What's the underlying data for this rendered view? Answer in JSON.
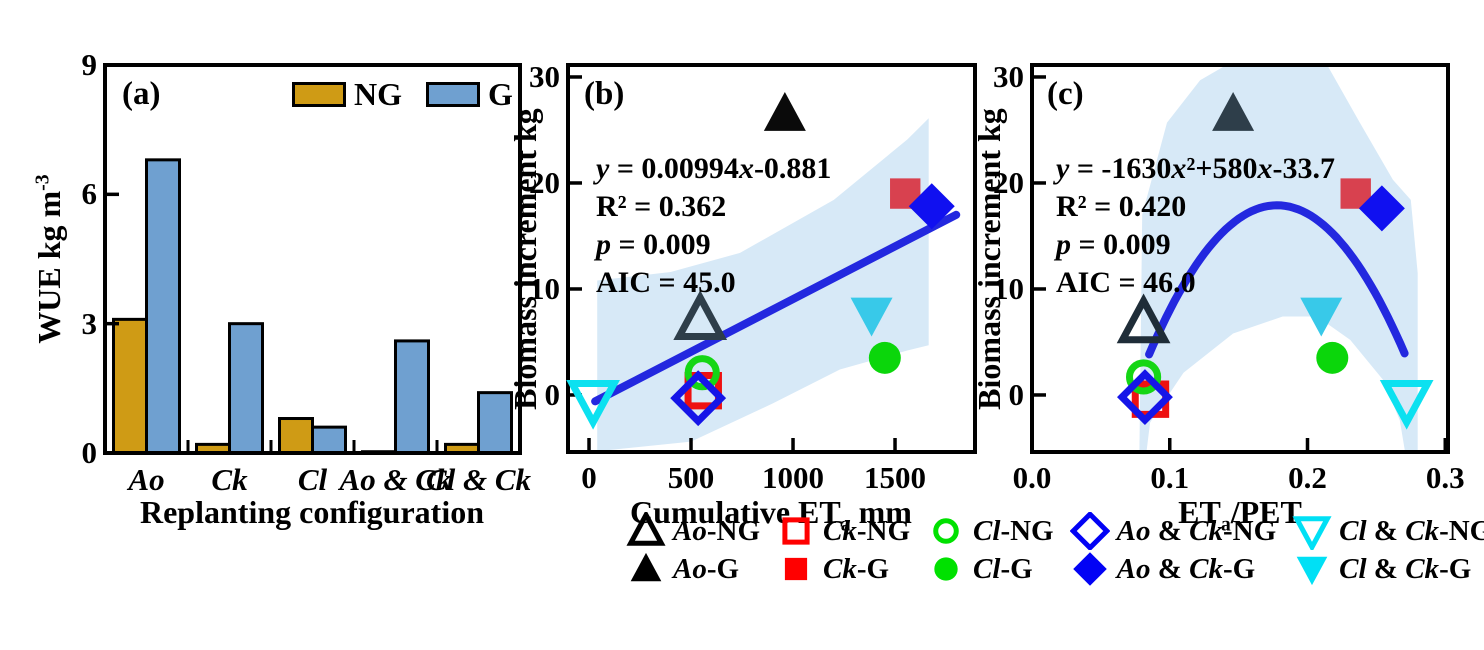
{
  "figure": {
    "background": "#FFFFFF",
    "colors": {
      "band": "#D7E9F7",
      "fit_line": "#2328DF",
      "axis": "#000000"
    },
    "panels": {
      "a": {
        "tag": "(a)",
        "ylabel": [
          {
            "t": "WUE kg m"
          },
          {
            "t": "-3",
            "sup": true
          }
        ],
        "xlabel": [
          {
            "t": "Replanting configuration"
          }
        ],
        "legend": [
          {
            "label": "NG",
            "color": "#CF9B15"
          },
          {
            "label": "G",
            "color": "#6FA0D0"
          }
        ],
        "chart_data": {
          "type": "bar",
          "categories": [
            "Ao",
            "Ck",
            "Cl",
            "Ao & Ck",
            "Cl & Ck"
          ],
          "series": [
            {
              "name": "NG",
              "color": "#CF9B15",
              "values": [
                3.1,
                0.2,
                0.8,
                0.03,
                0.2
              ]
            },
            {
              "name": "G",
              "color": "#6FA0D0",
              "values": [
                6.8,
                3.0,
                0.6,
                2.6,
                1.4
              ]
            }
          ],
          "ylim": [
            0,
            9
          ],
          "yticks": {
            "values": [
              0,
              3,
              6,
              9
            ],
            "labels": [
              "0",
              "3",
              "6",
              "9"
            ]
          }
        }
      },
      "b": {
        "tag": "(b)",
        "ylabel": "Biomass increment kg",
        "xlabel": [
          {
            "t": "Cumulative ET"
          },
          {
            "t": "a",
            "sub": true
          },
          {
            "t": " mm"
          }
        ],
        "stats": [
          [
            {
              "t": "y",
              "i": true
            },
            {
              "t": " = 0.00994"
            },
            {
              "t": "x",
              "i": true
            },
            {
              "t": "-0.881"
            }
          ],
          [
            {
              "t": "R² = 0.362"
            }
          ],
          [
            {
              "t": "p",
              "i": true
            },
            {
              "t": " = 0.009"
            }
          ],
          [
            {
              "t": "AIC = 45.0"
            }
          ]
        ],
        "chart_data": {
          "type": "scatter",
          "xlim": [
            -103,
            1892
          ],
          "ylim": [
            -5.38,
            31.13
          ],
          "xticks": {
            "values": [
              0,
              500,
              1000,
              1500
            ],
            "labels": [
              "0",
              "500",
              "1000",
              "1500"
            ]
          },
          "yticks": {
            "values": [
              0,
              10,
              20,
              30
            ],
            "labels": [
              "0",
              "10",
              "20",
              "30"
            ]
          },
          "fit_line": {
            "x1": 30,
            "y1": -0.6,
            "x2": 1800,
            "y2": 17.0,
            "color": "#2328DF"
          },
          "band": [
            [
              40,
              10.8
            ],
            [
              400,
              11.6
            ],
            [
              740,
              13.4
            ],
            [
              1200,
              18.4
            ],
            [
              1560,
              24.1
            ],
            [
              1665,
              26.1
            ],
            [
              1665,
              4.7
            ],
            [
              1560,
              4.2
            ],
            [
              1230,
              2.4
            ],
            [
              900,
              -0.8
            ],
            [
              500,
              -4.4
            ],
            [
              40,
              -5.3
            ]
          ],
          "points": [
            {
              "name": "Ck-NG",
              "marker": "square",
              "filled": false,
              "color": "#EE1111",
              "x": 560,
              "y": 0.4
            },
            {
              "name": "Cl-NG",
              "marker": "circle",
              "filled": false,
              "color": "#15D615",
              "x": 555,
              "y": 2.1
            },
            {
              "name": "Ao & Ck-NG",
              "marker": "diamond",
              "filled": false,
              "color": "#1515E8",
              "x": 535,
              "y": -0.3
            },
            {
              "name": "Cl & Ck-NG",
              "marker": "triangle-down",
              "filled": false,
              "color": "#0CE1F0",
              "x": 20,
              "y": -0.5
            },
            {
              "name": "Ao-NG",
              "marker": "triangle",
              "filled": false,
              "color": "#2E3E4A",
              "x": 545,
              "y": 7.1
            },
            {
              "name": "Ao-G",
              "marker": "triangle",
              "filled": true,
              "color": "#0A0A0A",
              "x": 960,
              "y": 26.5
            },
            {
              "name": "Ck-G",
              "marker": "square",
              "filled": true,
              "color": "#D8414F",
              "x": 1550,
              "y": 19.0
            },
            {
              "name": "Ao & Ck-G",
              "marker": "diamond",
              "filled": true,
              "color": "#1010F0",
              "x": 1680,
              "y": 17.8
            },
            {
              "name": "Cl-G",
              "marker": "circle",
              "filled": true,
              "color": "#0BD60B",
              "x": 1450,
              "y": 3.5
            },
            {
              "name": "Cl & Ck-G",
              "marker": "triangle-down",
              "filled": true,
              "color": "#38C9E9",
              "x": 1385,
              "y": 7.6
            }
          ]
        }
      },
      "c": {
        "tag": "(c)",
        "ylabel": "Biomass increment kg",
        "xlabel": [
          {
            "t": "ET"
          },
          {
            "t": "a",
            "sub": true
          },
          {
            "t": "/PET"
          }
        ],
        "stats": [
          [
            {
              "t": "y",
              "i": true
            },
            {
              "t": " = -1630"
            },
            {
              "t": "x",
              "i": true
            },
            {
              "t": "²+580"
            },
            {
              "t": "x",
              "i": true
            },
            {
              "t": "-33.7"
            }
          ],
          [
            {
              "t": "R² = 0.420"
            }
          ],
          [
            {
              "t": "p",
              "i": true
            },
            {
              "t": " = 0.009"
            }
          ],
          [
            {
              "t": "AIC = 46.0"
            }
          ]
        ],
        "chart_data": {
          "type": "scatter",
          "xlim": [
            0,
            0.302
          ],
          "ylim": [
            -5.38,
            31.13
          ],
          "xticks": {
            "values": [
              0,
              0.1,
              0.2,
              0.3
            ],
            "labels": [
              "0.0",
              "0.1",
              "0.2",
              "0.3"
            ]
          },
          "yticks": {
            "values": [
              0,
              10,
              20,
              30
            ],
            "labels": [
              "0",
              "10",
              "20",
              "30"
            ]
          },
          "fit_curve": {
            "coeffs": [
              -1630,
              580,
              -33.7
            ],
            "x_start": 0.085,
            "x_end": 0.2705,
            "color": "#2328DF"
          },
          "band": [
            [
              0.078,
              -5.5
            ],
            [
              0.08,
              17
            ],
            [
              0.098,
              25.7
            ],
            [
              0.122,
              29.7
            ],
            [
              0.142,
              31.2
            ],
            [
              0.214,
              31.2
            ],
            [
              0.238,
              25.7
            ],
            [
              0.262,
              20.3
            ],
            [
              0.275,
              18.4
            ],
            [
              0.28,
              11.5
            ],
            [
              0.28,
              -5.5
            ],
            [
              0.271,
              -5.5
            ],
            [
              0.267,
              -2.4
            ],
            [
              0.255,
              1.4
            ],
            [
              0.231,
              5.2
            ],
            [
              0.207,
              7.4
            ],
            [
              0.182,
              7.4
            ],
            [
              0.146,
              5.8
            ],
            [
              0.11,
              2.1
            ],
            [
              0.0857,
              -2.6
            ],
            [
              0.083,
              -5.5
            ]
          ],
          "points": [
            {
              "name": "Ck-NG",
              "marker": "square",
              "filled": false,
              "color": "#EE1111",
              "x": 0.086,
              "y": -0.4
            },
            {
              "name": "Cl-NG",
              "marker": "circle",
              "filled": false,
              "color": "#15D615",
              "x": 0.081,
              "y": 1.7
            },
            {
              "name": "Ao & Ck-NG",
              "marker": "diamond",
              "filled": false,
              "color": "#1515E8",
              "x": 0.082,
              "y": -0.2
            },
            {
              "name": "Cl & Ck-NG",
              "marker": "triangle-down",
              "filled": false,
              "color": "#0CE1F0",
              "x": 0.272,
              "y": -0.5
            },
            {
              "name": "Ao-NG",
              "marker": "triangle",
              "filled": false,
              "color": "#1F2D38",
              "x": 0.081,
              "y": 6.8
            },
            {
              "name": "Ao-G",
              "marker": "triangle",
              "filled": true,
              "color": "#2E3E4A",
              "x": 0.146,
              "y": 26.5
            },
            {
              "name": "Ck-G",
              "marker": "square",
              "filled": true,
              "color": "#D8414F",
              "x": 0.235,
              "y": 19.0
            },
            {
              "name": "Ao & Ck-G",
              "marker": "diamond",
              "filled": true,
              "color": "#1010F0",
              "x": 0.254,
              "y": 17.6
            },
            {
              "name": "Cl-G",
              "marker": "circle",
              "filled": true,
              "color": "#0BD60B",
              "x": 0.218,
              "y": 3.5
            },
            {
              "name": "Cl & Ck-G",
              "marker": "triangle-down",
              "filled": true,
              "color": "#38C9E9",
              "x": 0.21,
              "y": 7.6
            }
          ]
        }
      }
    },
    "legend": {
      "rows": [
        [
          {
            "marker": "triangle",
            "filled": false,
            "color": "#000000",
            "label": [
              {
                "t": "Ao",
                "i": true
              },
              {
                "t": "-NG"
              }
            ]
          },
          {
            "marker": "square",
            "filled": false,
            "color": "#FF0000",
            "label": [
              {
                "t": "Ck",
                "i": true
              },
              {
                "t": "-NG"
              }
            ]
          },
          {
            "marker": "circle",
            "filled": false,
            "color": "#00E100",
            "label": [
              {
                "t": "Cl",
                "i": true
              },
              {
                "t": "-NG"
              }
            ]
          },
          {
            "marker": "diamond",
            "filled": false,
            "color": "#0202F5",
            "label": [
              {
                "t": "Ao",
                "i": true
              },
              {
                "t": " & "
              },
              {
                "t": "Ck",
                "i": true
              },
              {
                "t": "-NG"
              }
            ]
          },
          {
            "marker": "triangle-down",
            "filled": false,
            "color": "#00E0F5",
            "label": [
              {
                "t": "Cl",
                "i": true
              },
              {
                "t": " & "
              },
              {
                "t": "Ck",
                "i": true
              },
              {
                "t": "-NG"
              }
            ]
          }
        ],
        [
          {
            "marker": "triangle",
            "filled": true,
            "color": "#000000",
            "label": [
              {
                "t": "Ao",
                "i": true
              },
              {
                "t": "-G"
              }
            ]
          },
          {
            "marker": "square",
            "filled": true,
            "color": "#FF0000",
            "label": [
              {
                "t": "Ck",
                "i": true
              },
              {
                "t": "-G"
              }
            ]
          },
          {
            "marker": "circle",
            "filled": true,
            "color": "#00E100",
            "label": [
              {
                "t": "Cl",
                "i": true
              },
              {
                "t": "-G"
              }
            ]
          },
          {
            "marker": "diamond",
            "filled": true,
            "color": "#0202F5",
            "label": [
              {
                "t": "Ao",
                "i": true
              },
              {
                "t": " & "
              },
              {
                "t": "Ck",
                "i": true
              },
              {
                "t": "-G"
              }
            ]
          },
          {
            "marker": "triangle-down",
            "filled": true,
            "color": "#00E0F5",
            "label": [
              {
                "t": "Cl",
                "i": true
              },
              {
                "t": " & "
              },
              {
                "t": "Ck",
                "i": true
              },
              {
                "t": "-G"
              }
            ]
          }
        ]
      ]
    }
  }
}
